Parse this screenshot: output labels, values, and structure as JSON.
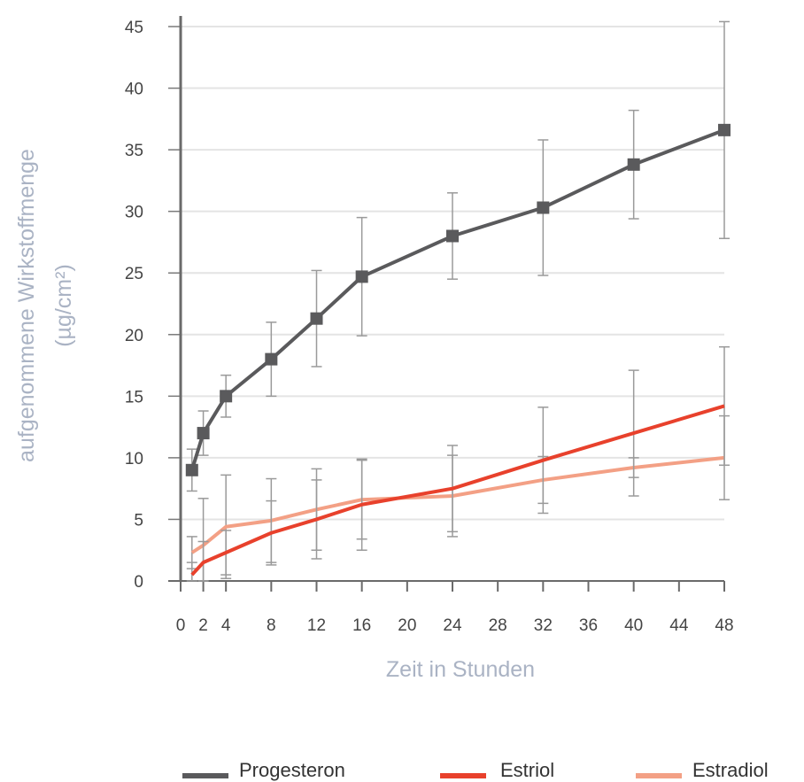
{
  "chart_data": {
    "type": "line",
    "title": "",
    "xlabel": "Zeit in Stunden",
    "ylabel": "aufgenommene Wirkstoffmenge",
    "ylabel_unit": "(µg/cm²)",
    "x_ticks": [
      0,
      2,
      4,
      8,
      12,
      16,
      20,
      24,
      28,
      32,
      36,
      40,
      44,
      48
    ],
    "y_ticks": [
      0,
      5,
      10,
      15,
      20,
      25,
      30,
      35,
      40,
      45
    ],
    "xlim": [
      0,
      48
    ],
    "ylim": [
      0,
      45
    ],
    "grid": "horizontal",
    "legend_position": "bottom",
    "series": [
      {
        "name": "Progesteron",
        "color": "#5a5a5c",
        "marker": "square",
        "x": [
          1,
          2,
          4,
          8,
          12,
          16,
          24,
          32,
          40,
          48
        ],
        "y": [
          9.0,
          12.0,
          15.0,
          18.0,
          21.3,
          24.7,
          28.0,
          30.3,
          33.8,
          36.6
        ],
        "err": [
          1.7,
          1.8,
          1.7,
          3.0,
          3.9,
          4.8,
          3.5,
          5.5,
          4.4,
          8.8
        ]
      },
      {
        "name": "Estriol",
        "color": "#e8412c",
        "marker": "none",
        "x": [
          1,
          2,
          4,
          8,
          12,
          16,
          24,
          32,
          40,
          48
        ],
        "y": [
          0.5,
          1.5,
          2.3,
          3.9,
          5.0,
          6.2,
          7.5,
          9.8,
          12.0,
          14.2
        ],
        "err": [
          1.0,
          1.7,
          1.8,
          2.6,
          3.2,
          3.7,
          3.5,
          4.3,
          5.1,
          4.8
        ]
      },
      {
        "name": "Estradiol",
        "color": "#f3a085",
        "marker": "none",
        "x": [
          1,
          2,
          4,
          8,
          12,
          16,
          24,
          32,
          40,
          48
        ],
        "y": [
          2.3,
          2.9,
          4.4,
          4.9,
          5.8,
          6.6,
          6.9,
          8.2,
          9.2,
          10.0
        ],
        "err": [
          1.3,
          3.8,
          4.2,
          3.4,
          3.3,
          3.2,
          3.3,
          1.9,
          0.8,
          3.4
        ]
      }
    ]
  }
}
